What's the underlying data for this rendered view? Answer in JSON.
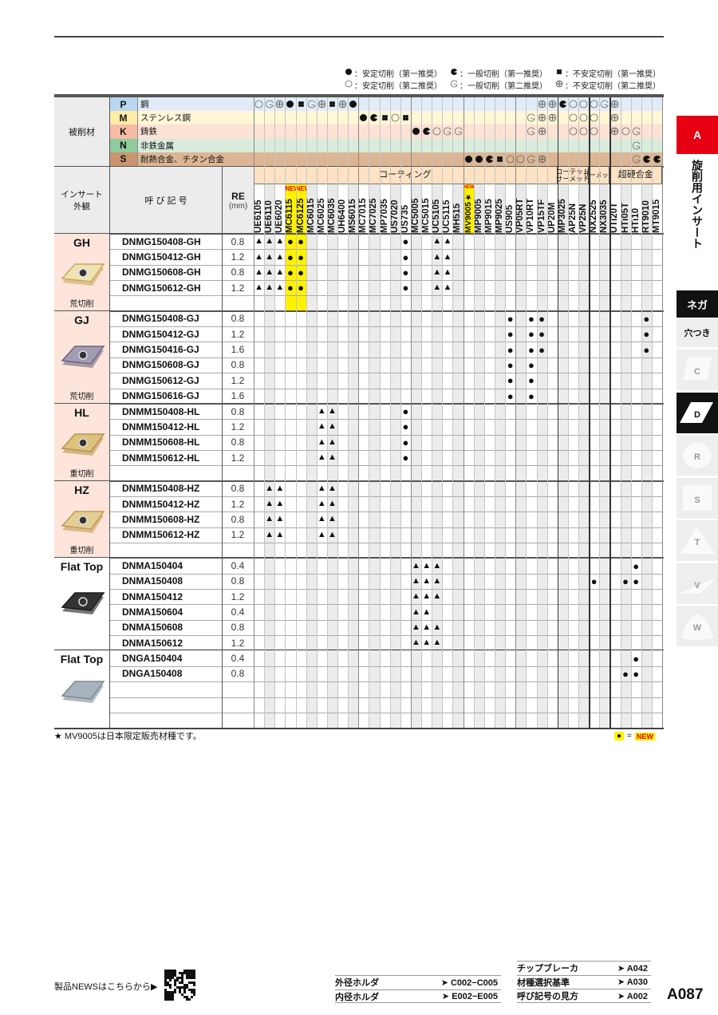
{
  "legend": [
    {
      "key": "stable_1",
      "text": "：安定切削（第一推奨）"
    },
    {
      "key": "general_1",
      "text": "：一般切削（第一推奨）"
    },
    {
      "key": "unstable_1",
      "text": "：不安定切削（第一推奨）"
    },
    {
      "key": "stable_2",
      "text": "：安定切削（第二推奨）"
    },
    {
      "key": "general_2",
      "text": "：一般切削（第二推奨）"
    },
    {
      "key": "unstable_2",
      "text": "：不安定切削（第二推奨）"
    }
  ],
  "header": {
    "workpiece_label": "被削材",
    "insert_label_1": "インサート",
    "insert_label_2": "外観",
    "designation_label": "呼 び 記 号",
    "re_label": "RE",
    "re_unit": "(mm)",
    "new_badge": "NEW",
    "categories": [
      {
        "label": "コーティング",
        "cols": 29
      },
      {
        "label": "コーテッド\nサーメット",
        "cols": 3
      },
      {
        "label": "サーメット",
        "cols": 2
      },
      {
        "label": "超硬合金",
        "cols": 5
      }
    ]
  },
  "grades": [
    "UE6105",
    "UE6110",
    "UE6020",
    "MC6115",
    "MC6125",
    "MC6015",
    "MC6025",
    "MC6035",
    "UH6400",
    "MS6015",
    "MC7015",
    "MC7025",
    "MP7035",
    "US7020",
    "US735",
    "MC5005",
    "MC5015",
    "UC5105",
    "UC5115",
    "MH515",
    "MV9005★",
    "MP9005",
    "MP9015",
    "MP9025",
    "US905",
    "VP05RT",
    "VP10RT",
    "VP15TF",
    "UP20M",
    "MP3025",
    "AP25N",
    "VP25N",
    "NX2525",
    "NX3035",
    "UTi20T",
    "HTi05T",
    "HTi10",
    "RT9010",
    "MT9015"
  ],
  "new_grades": [
    "MC6115",
    "MC6125",
    "MV9005★"
  ],
  "materials": [
    {
      "iso": "P",
      "name": "鋼",
      "color": "#e1ecf8",
      "iso_color": "#b9d6f0",
      "marks": {
        "UE6105": "stable_2",
        "UE6110": "general_2",
        "UE6020": "unstable_2",
        "MC6115": "stable_1",
        "MC6125": "unstable_1",
        "MC6015": "general_2",
        "MC6025": "unstable_2",
        "MC6035": "unstable_1",
        "UH6400": "unstable_2",
        "MS6015": "stable_1",
        "VP15TF": "unstable_2",
        "UP20M": "unstable_2",
        "MP3025": "general_1",
        "AP25N": "stable_2",
        "VP25N": "stable_2",
        "NX2525": "stable_2",
        "NX3035": "general_2",
        "UTi20T": "unstable_2"
      }
    },
    {
      "iso": "M",
      "name": "ステンレス鋼",
      "color": "#fff7d6",
      "iso_color": "#ffeca6",
      "marks": {
        "MC7015": "stable_1",
        "MC7025": "general_1",
        "MP7035": "unstable_1",
        "US7020": "stable_2",
        "US735": "unstable_1",
        "VP10RT": "general_2",
        "VP15TF": "unstable_2",
        "UP20M": "unstable_2",
        "AP25N": "stable_2",
        "VP25N": "stable_2",
        "NX2525": "stable_2",
        "UTi20T": "unstable_2"
      }
    },
    {
      "iso": "K",
      "name": "鋳鉄",
      "color": "#fde2d6",
      "iso_color": "#f8bca6",
      "marks": {
        "MC5005": "stable_1",
        "MC5015": "general_1",
        "UC5105": "stable_2",
        "UC5115": "general_2",
        "MH515": "general_2",
        "VP10RT": "general_2",
        "VP15TF": "unstable_2",
        "AP25N": "stable_2",
        "VP25N": "stable_2",
        "NX2525": "stable_2",
        "UTi20T": "unstable_2",
        "HTi05T": "stable_2",
        "HTi10": "general_2"
      }
    },
    {
      "iso": "N",
      "name": "非鉄金属",
      "color": "#d9ecdb",
      "iso_color": "#8fcb9d",
      "marks": {
        "HTi10": "general_2"
      }
    },
    {
      "iso": "S",
      "name": "耐熱合金、チタン合金",
      "color": "#dcb694",
      "iso_color": "#c99670",
      "marks": {
        "MV9005★": "stable_1",
        "MP9005": "stable_1",
        "MP9015": "general_1",
        "MP9025": "unstable_1",
        "US905": "stable_2",
        "VP05RT": "stable_2",
        "VP10RT": "general_2",
        "VP15TF": "unstable_2",
        "HTi10": "general_2",
        "RT9010": "general_1",
        "MT9015": "general_1"
      }
    }
  ],
  "groups": [
    {
      "code": "GH",
      "type": "荒切削",
      "shape": "gold-cross",
      "blank": 1,
      "rows": [
        {
          "name": "DNMG150408-GH",
          "re": "0.8",
          "marks": {
            "UE6105": "▲",
            "UE6110": "▲",
            "UE6020": "▲",
            "MC6115": "●",
            "MC6125": "●",
            "US735": "●",
            "UC5105": "▲",
            "UC5115": "▲"
          }
        },
        {
          "name": "DNMG150412-GH",
          "re": "1.2",
          "marks": {
            "UE6105": "▲",
            "UE6110": "▲",
            "UE6020": "▲",
            "MC6115": "●",
            "MC6125": "●",
            "US735": "●",
            "UC5105": "▲",
            "UC5115": "▲"
          }
        },
        {
          "name": "DNMG150608-GH",
          "re": "0.8",
          "marks": {
            "UE6105": "▲",
            "UE6110": "▲",
            "UE6020": "▲",
            "MC6115": "●",
            "MC6125": "●",
            "US735": "●",
            "UC5105": "▲",
            "UC5115": "▲"
          }
        },
        {
          "name": "DNMG150612-GH",
          "re": "1.2",
          "marks": {
            "UE6105": "▲",
            "UE6110": "▲",
            "UE6020": "▲",
            "MC6115": "●",
            "MC6125": "●",
            "US735": "●",
            "UC5105": "▲",
            "UC5115": "▲"
          }
        }
      ]
    },
    {
      "code": "GJ",
      "type": "荒切削",
      "shape": "purple",
      "blank": 0,
      "rows": [
        {
          "name": "DNMG150408-GJ",
          "re": "0.8",
          "marks": {
            "US905": "●",
            "VP10RT": "●",
            "VP15TF": "●",
            "RT9010": "●"
          }
        },
        {
          "name": "DNMG150412-GJ",
          "re": "1.2",
          "marks": {
            "US905": "●",
            "VP10RT": "●",
            "VP15TF": "●",
            "RT9010": "●"
          }
        },
        {
          "name": "DNMG150416-GJ",
          "re": "1.6",
          "marks": {
            "US905": "●",
            "VP10RT": "●",
            "VP15TF": "●",
            "RT9010": "●"
          }
        },
        {
          "name": "DNMG150608-GJ",
          "re": "0.8",
          "marks": {
            "US905": "●",
            "VP10RT": "●"
          }
        },
        {
          "name": "DNMG150612-GJ",
          "re": "1.2",
          "marks": {
            "US905": "●",
            "VP10RT": "●"
          }
        },
        {
          "name": "DNMG150616-GJ",
          "re": "1.6",
          "marks": {
            "US905": "●",
            "VP10RT": "●"
          }
        }
      ]
    },
    {
      "code": "HL",
      "type": "重切削",
      "shape": "gold",
      "blank": 1,
      "rows": [
        {
          "name": "DNMM150408-HL",
          "re": "0.8",
          "marks": {
            "MC6025": "▲",
            "MC6035": "▲",
            "US735": "●"
          }
        },
        {
          "name": "DNMM150412-HL",
          "re": "1.2",
          "marks": {
            "MC6025": "▲",
            "MC6035": "▲",
            "US735": "●"
          }
        },
        {
          "name": "DNMM150608-HL",
          "re": "0.8",
          "marks": {
            "MC6025": "▲",
            "MC6035": "▲",
            "US735": "●"
          }
        },
        {
          "name": "DNMM150612-HL",
          "re": "1.2",
          "marks": {
            "MC6025": "▲",
            "MC6035": "▲",
            "US735": "●"
          }
        }
      ]
    },
    {
      "code": "HZ",
      "type": "重切削",
      "shape": "gold-dots",
      "blank": 1,
      "rows": [
        {
          "name": "DNMM150408-HZ",
          "re": "0.8",
          "marks": {
            "UE6110": "▲",
            "UE6020": "▲",
            "MC6025": "▲",
            "MC6035": "▲"
          }
        },
        {
          "name": "DNMM150412-HZ",
          "re": "1.2",
          "marks": {
            "UE6110": "▲",
            "UE6020": "▲",
            "MC6025": "▲",
            "MC6035": "▲"
          }
        },
        {
          "name": "DNMM150608-HZ",
          "re": "0.8",
          "marks": {
            "UE6110": "▲",
            "UE6020": "▲",
            "MC6025": "▲",
            "MC6035": "▲"
          }
        },
        {
          "name": "DNMM150612-HZ",
          "re": "1.2",
          "marks": {
            "UE6110": "▲",
            "UE6020": "▲",
            "MC6025": "▲",
            "MC6035": "▲"
          }
        }
      ]
    },
    {
      "code": "Flat Top",
      "type": "",
      "shape": "black",
      "blank": 0,
      "rows": [
        {
          "name": "DNMA150404",
          "re": "0.4",
          "marks": {
            "MC5005": "▲",
            "MC5015": "▲",
            "UC5105": "▲",
            "HTi10": "●"
          }
        },
        {
          "name": "DNMA150408",
          "re": "0.8",
          "marks": {
            "MC5005": "▲",
            "MC5015": "▲",
            "UC5105": "▲",
            "NX2525": "●",
            "HTi05T": "●",
            "HTi10": "●"
          }
        },
        {
          "name": "DNMA150412",
          "re": "1.2",
          "marks": {
            "MC5005": "▲",
            "MC5015": "▲",
            "UC5105": "▲"
          }
        },
        {
          "name": "DNMA150604",
          "re": "0.4",
          "marks": {
            "MC5005": "▲",
            "MC5015": "▲"
          }
        },
        {
          "name": "DNMA150608",
          "re": "0.8",
          "marks": {
            "MC5005": "▲",
            "MC5015": "▲",
            "UC5105": "▲"
          }
        },
        {
          "name": "DNMA150612",
          "re": "1.2",
          "marks": {
            "MC5005": "▲",
            "MC5015": "▲",
            "UC5105": "▲"
          }
        }
      ]
    },
    {
      "code": "Flat Top",
      "type": "",
      "shape": "steel",
      "blank": 3,
      "rows": [
        {
          "name": "DNGA150404",
          "re": "0.4",
          "marks": {
            "HTi10": "●"
          }
        },
        {
          "name": "DNGA150408",
          "re": "0.8",
          "marks": {
            "HTi05T": "●",
            "HTi10": "●"
          }
        }
      ]
    }
  ],
  "note": "★ MV9005は日本限定販売材種です。",
  "new_key": {
    "symbol": "●",
    "eq": "=",
    "label": "NEW"
  },
  "sidebar": {
    "section": "A",
    "section_title": "旋削用インサート",
    "type": "ネガ",
    "sub": "穴つき",
    "shapes": [
      {
        "label": "C",
        "active": false
      },
      {
        "label": "D",
        "active": true
      },
      {
        "label": "R",
        "active": false
      },
      {
        "label": "S",
        "active": false
      },
      {
        "label": "T",
        "active": false
      },
      {
        "label": "V",
        "active": false
      },
      {
        "label": "W",
        "active": false
      }
    ],
    "accent": "#e60012"
  },
  "footer": {
    "news": "製品NEWSはこちらから▶",
    "links_left": [
      {
        "label": "外径ホルダ",
        "ref": "➤ C002−C005"
      },
      {
        "label": "内径ホルダ",
        "ref": "➤ E002−E005"
      }
    ],
    "links_right": [
      {
        "label": "チップブレーカ",
        "ref": "➤ A042"
      },
      {
        "label": "材種選択基準",
        "ref": "➤ A030"
      },
      {
        "label": "呼び記号の見方",
        "ref": "➤ A002"
      }
    ],
    "page": "A087"
  }
}
